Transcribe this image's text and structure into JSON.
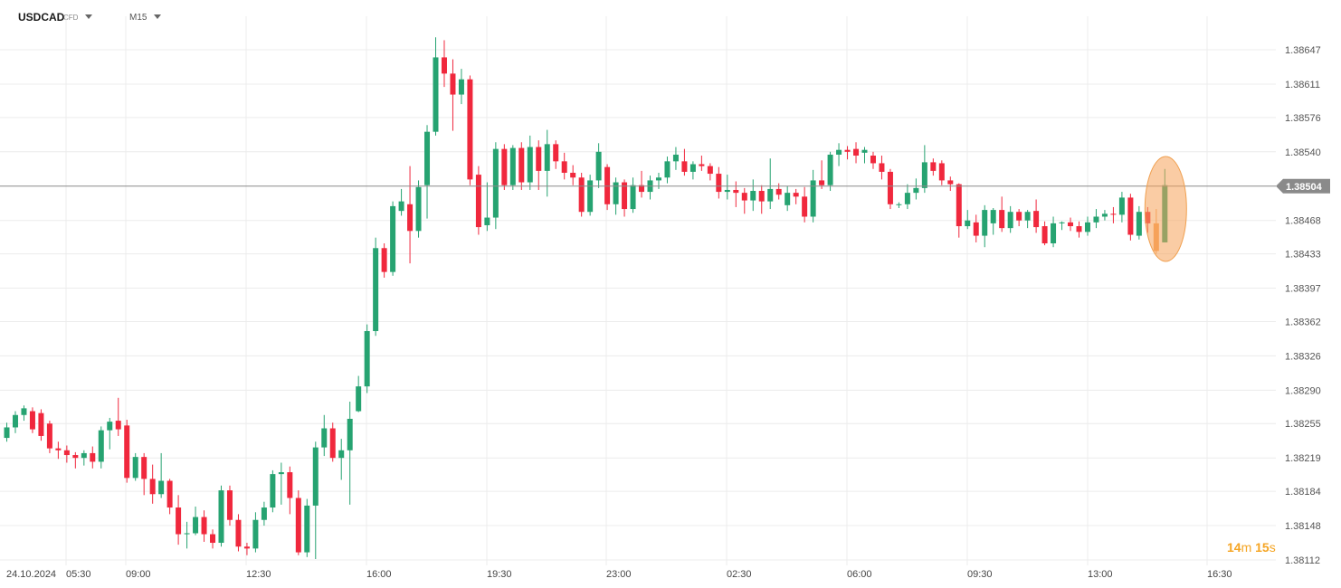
{
  "toolbar": {
    "symbol": "USDCAD",
    "instrument_type": "CFD",
    "timeframe": "M15",
    "symbol_menu_icon": "chevron-down-icon",
    "timeframe_menu_icon": "chevron-down-icon"
  },
  "countdown": {
    "minutes": "14",
    "minutes_unit": "m",
    "seconds": "15",
    "seconds_unit": "s"
  },
  "chart_data": {
    "type": "candlestick",
    "title": "USDCAD",
    "timeframe": "M15",
    "current_price": "1.38504",
    "colors": {
      "up": "#26a371",
      "down": "#f0283d",
      "highlight": "#f5a35a",
      "price_line": "#8a8a8a",
      "price_tag": "#8a8a8a",
      "grid": "#ececec"
    },
    "grid": true,
    "ylim": [
      1.381,
      1.3869
    ],
    "y_ticks": [
      "1.38647",
      "1.38611",
      "1.38576",
      "1.38540",
      "1.38468",
      "1.38433",
      "1.38397",
      "1.38362",
      "1.38326",
      "1.38290",
      "1.38255",
      "1.38219",
      "1.38184",
      "1.38148",
      "1.38112"
    ],
    "x_ticks": [
      "24.10.2024",
      "05:30",
      "09:00",
      "12:30",
      "16:00",
      "19:30",
      "23:00",
      "02:30",
      "06:00",
      "09:30",
      "13:00",
      "16:30"
    ],
    "candles": [
      [
        1.3824,
        1.38251,
        1.38236,
        1.38256
      ],
      [
        1.38251,
        1.38264,
        1.38245,
        1.38268
      ],
      [
        1.38264,
        1.38271,
        1.38258,
        1.38274
      ],
      [
        1.38268,
        1.38249,
        1.38245,
        1.38272
      ],
      [
        1.38266,
        1.38242,
        1.38237,
        1.3827
      ],
      [
        1.38255,
        1.38229,
        1.38224,
        1.38258
      ],
      [
        1.38229,
        1.38227,
        1.38218,
        1.38236
      ],
      [
        1.38227,
        1.38222,
        1.38214,
        1.38232
      ],
      [
        1.38222,
        1.38219,
        1.38208,
        1.38225
      ],
      [
        1.38219,
        1.38224,
        1.38211,
        1.38227
      ],
      [
        1.38224,
        1.38215,
        1.38208,
        1.38231
      ],
      [
        1.38215,
        1.38248,
        1.38208,
        1.38252
      ],
      [
        1.38248,
        1.38257,
        1.38228,
        1.38261
      ],
      [
        1.38258,
        1.38249,
        1.38242,
        1.38282
      ],
      [
        1.38253,
        1.38198,
        1.38193,
        1.38259
      ],
      [
        1.38198,
        1.3822,
        1.38195,
        1.38224
      ],
      [
        1.3822,
        1.38197,
        1.3818,
        1.38224
      ],
      [
        1.38197,
        1.38181,
        1.38171,
        1.38212
      ],
      [
        1.38181,
        1.38195,
        1.38177,
        1.38224
      ],
      [
        1.38195,
        1.38167,
        1.3816,
        1.38197
      ],
      [
        1.38167,
        1.38139,
        1.38128,
        1.3818
      ],
      [
        1.38139,
        1.3814,
        1.38124,
        1.38152
      ],
      [
        1.3814,
        1.38157,
        1.38138,
        1.38168
      ],
      [
        1.38157,
        1.38139,
        1.38131,
        1.38164
      ],
      [
        1.38139,
        1.3813,
        1.38124,
        1.38144
      ],
      [
        1.3813,
        1.38185,
        1.38126,
        1.3819
      ],
      [
        1.38185,
        1.38154,
        1.38148,
        1.3819
      ],
      [
        1.38154,
        1.38126,
        1.38121,
        1.3816
      ],
      [
        1.38126,
        1.38124,
        1.38117,
        1.3813
      ],
      [
        1.38124,
        1.38154,
        1.3812,
        1.38162
      ],
      [
        1.38154,
        1.38167,
        1.38148,
        1.38173
      ],
      [
        1.38167,
        1.38202,
        1.38162,
        1.38206
      ],
      [
        1.38202,
        1.38204,
        1.3817,
        1.38214
      ],
      [
        1.38204,
        1.38177,
        1.3816,
        1.3821
      ],
      [
        1.38177,
        1.3812,
        1.38117,
        1.38185
      ],
      [
        1.3812,
        1.38169,
        1.38115,
        1.38176
      ],
      [
        1.38169,
        1.3823,
        1.38113,
        1.38236
      ],
      [
        1.3823,
        1.3825,
        1.38221,
        1.38264
      ],
      [
        1.3825,
        1.38219,
        1.38215,
        1.38256
      ],
      [
        1.38219,
        1.38227,
        1.38196,
        1.38239
      ],
      [
        1.38227,
        1.3826,
        1.3817,
        1.38278
      ],
      [
        1.38268,
        1.38294,
        1.38267,
        1.38305
      ],
      [
        1.38294,
        1.38352,
        1.38287,
        1.38359
      ],
      [
        1.38352,
        1.38439,
        1.38347,
        1.3845
      ],
      [
        1.38439,
        1.38414,
        1.38408,
        1.38444
      ],
      [
        1.38414,
        1.38483,
        1.3841,
        1.38488
      ],
      [
        1.38478,
        1.38488,
        1.38473,
        1.38501
      ],
      [
        1.38485,
        1.38457,
        1.38423,
        1.38525
      ],
      [
        1.38457,
        1.38503,
        1.3845,
        1.3851
      ],
      [
        1.38505,
        1.38561,
        1.3847,
        1.38568
      ],
      [
        1.38561,
        1.38639,
        1.38557,
        1.3866
      ],
      [
        1.38639,
        1.38622,
        1.38608,
        1.38657
      ],
      [
        1.38622,
        1.386,
        1.38562,
        1.38637
      ],
      [
        1.386,
        1.38616,
        1.3859,
        1.38627
      ],
      [
        1.38616,
        1.38511,
        1.38505,
        1.3862
      ],
      [
        1.38516,
        1.38461,
        1.38453,
        1.38525
      ],
      [
        1.38463,
        1.38471,
        1.38457,
        1.38508
      ],
      [
        1.38471,
        1.38543,
        1.38459,
        1.3855
      ],
      [
        1.38543,
        1.38505,
        1.385,
        1.38548
      ],
      [
        1.38505,
        1.38544,
        1.385,
        1.38547
      ],
      [
        1.38544,
        1.38508,
        1.385,
        1.3855
      ],
      [
        1.38508,
        1.38545,
        1.385,
        1.38557
      ],
      [
        1.38545,
        1.3852,
        1.385,
        1.38552
      ],
      [
        1.3852,
        1.38548,
        1.38493,
        1.38563
      ],
      [
        1.38548,
        1.3853,
        1.38522,
        1.38552
      ],
      [
        1.3853,
        1.38518,
        1.38511,
        1.38539
      ],
      [
        1.38518,
        1.38513,
        1.38505,
        1.38526
      ],
      [
        1.38513,
        1.38477,
        1.38472,
        1.38518
      ],
      [
        1.38477,
        1.3851,
        1.38473,
        1.38516
      ],
      [
        1.3851,
        1.3854,
        1.38502,
        1.38549
      ],
      [
        1.38524,
        1.38485,
        1.38479,
        1.38527
      ],
      [
        1.38485,
        1.38508,
        1.38474,
        1.38513
      ],
      [
        1.38508,
        1.3848,
        1.38472,
        1.38511
      ],
      [
        1.3848,
        1.38505,
        1.38476,
        1.38513
      ],
      [
        1.38505,
        1.38498,
        1.38492,
        1.3852
      ],
      [
        1.38498,
        1.3851,
        1.3849,
        1.38515
      ],
      [
        1.3851,
        1.38513,
        1.38501,
        1.38518
      ],
      [
        1.38513,
        1.3853,
        1.38507,
        1.38535
      ],
      [
        1.3853,
        1.38537,
        1.38521,
        1.38545
      ],
      [
        1.3853,
        1.38519,
        1.38515,
        1.38543
      ],
      [
        1.38519,
        1.38527,
        1.38511,
        1.3853
      ],
      [
        1.38527,
        1.38525,
        1.3852,
        1.38536
      ],
      [
        1.38525,
        1.38517,
        1.3851,
        1.38528
      ],
      [
        1.38517,
        1.38498,
        1.38491,
        1.38524
      ],
      [
        1.38498,
        1.385,
        1.3849,
        1.38516
      ],
      [
        1.385,
        1.38497,
        1.38482,
        1.38509
      ],
      [
        1.38497,
        1.38489,
        1.38475,
        1.38502
      ],
      [
        1.38489,
        1.38499,
        1.38478,
        1.38511
      ],
      [
        1.38499,
        1.38488,
        1.38475,
        1.38505
      ],
      [
        1.38488,
        1.38501,
        1.3848,
        1.38533
      ],
      [
        1.38501,
        1.38495,
        1.3849,
        1.38507
      ],
      [
        1.38484,
        1.38497,
        1.38478,
        1.38504
      ],
      [
        1.38497,
        1.38493,
        1.38485,
        1.38501
      ],
      [
        1.38493,
        1.38472,
        1.38466,
        1.38503
      ],
      [
        1.38472,
        1.3851,
        1.38466,
        1.38521
      ],
      [
        1.3851,
        1.38505,
        1.38501,
        1.38531
      ],
      [
        1.38505,
        1.38537,
        1.38499,
        1.3854
      ],
      [
        1.38537,
        1.38542,
        1.38525,
        1.38549
      ],
      [
        1.38542,
        1.3854,
        1.38532,
        1.38546
      ],
      [
        1.38543,
        1.38536,
        1.38528,
        1.3855
      ],
      [
        1.38539,
        1.38542,
        1.38528,
        1.38545
      ],
      [
        1.38536,
        1.38528,
        1.38522,
        1.3854
      ],
      [
        1.38528,
        1.38519,
        1.38511,
        1.38536
      ],
      [
        1.38519,
        1.38485,
        1.3848,
        1.38522
      ],
      [
        1.38485,
        1.38485,
        1.38481,
        1.38487
      ],
      [
        1.38485,
        1.38497,
        1.3848,
        1.38506
      ],
      [
        1.38497,
        1.38502,
        1.3849,
        1.38512
      ],
      [
        1.38502,
        1.38529,
        1.38497,
        1.38547
      ],
      [
        1.38529,
        1.3852,
        1.38515,
        1.38533
      ],
      [
        1.38528,
        1.3851,
        1.38505,
        1.38531
      ],
      [
        1.3851,
        1.38506,
        1.38499,
        1.38514
      ],
      [
        1.38506,
        1.38462,
        1.3845,
        1.38507
      ],
      [
        1.38462,
        1.38468,
        1.38459,
        1.38479
      ],
      [
        1.38466,
        1.38452,
        1.38445,
        1.38474
      ],
      [
        1.38452,
        1.38479,
        1.3844,
        1.38484
      ],
      [
        1.38465,
        1.38479,
        1.38453,
        1.38481
      ],
      [
        1.38479,
        1.3846,
        1.38456,
        1.38493
      ],
      [
        1.3846,
        1.38477,
        1.38455,
        1.38483
      ],
      [
        1.38477,
        1.38468,
        1.38462,
        1.3848
      ],
      [
        1.38468,
        1.38477,
        1.3846,
        1.38479
      ],
      [
        1.38478,
        1.38461,
        1.38455,
        1.3849
      ],
      [
        1.38462,
        1.38444,
        1.38442,
        1.38467
      ],
      [
        1.38444,
        1.38465,
        1.3844,
        1.38472
      ],
      [
        1.38465,
        1.38466,
        1.38458,
        1.38467
      ],
      [
        1.38466,
        1.38462,
        1.38457,
        1.38471
      ],
      [
        1.38462,
        1.38456,
        1.3845,
        1.38467
      ],
      [
        1.38456,
        1.38466,
        1.38452,
        1.38472
      ],
      [
        1.38466,
        1.38472,
        1.3846,
        1.3848
      ],
      [
        1.38472,
        1.38475,
        1.38468,
        1.38479
      ],
      [
        1.38475,
        1.38474,
        1.38465,
        1.38482
      ],
      [
        1.38474,
        1.38492,
        1.38466,
        1.38498
      ],
      [
        1.38492,
        1.38453,
        1.38447,
        1.38496
      ],
      [
        1.38452,
        1.38477,
        1.38448,
        1.38483
      ],
      [
        1.38477,
        1.38465,
        1.38455,
        1.38482
      ],
      [
        1.38465,
        1.38436,
        1.38433,
        1.3848
      ],
      [
        1.38445,
        1.38505,
        1.38445,
        1.38522
      ]
    ]
  }
}
